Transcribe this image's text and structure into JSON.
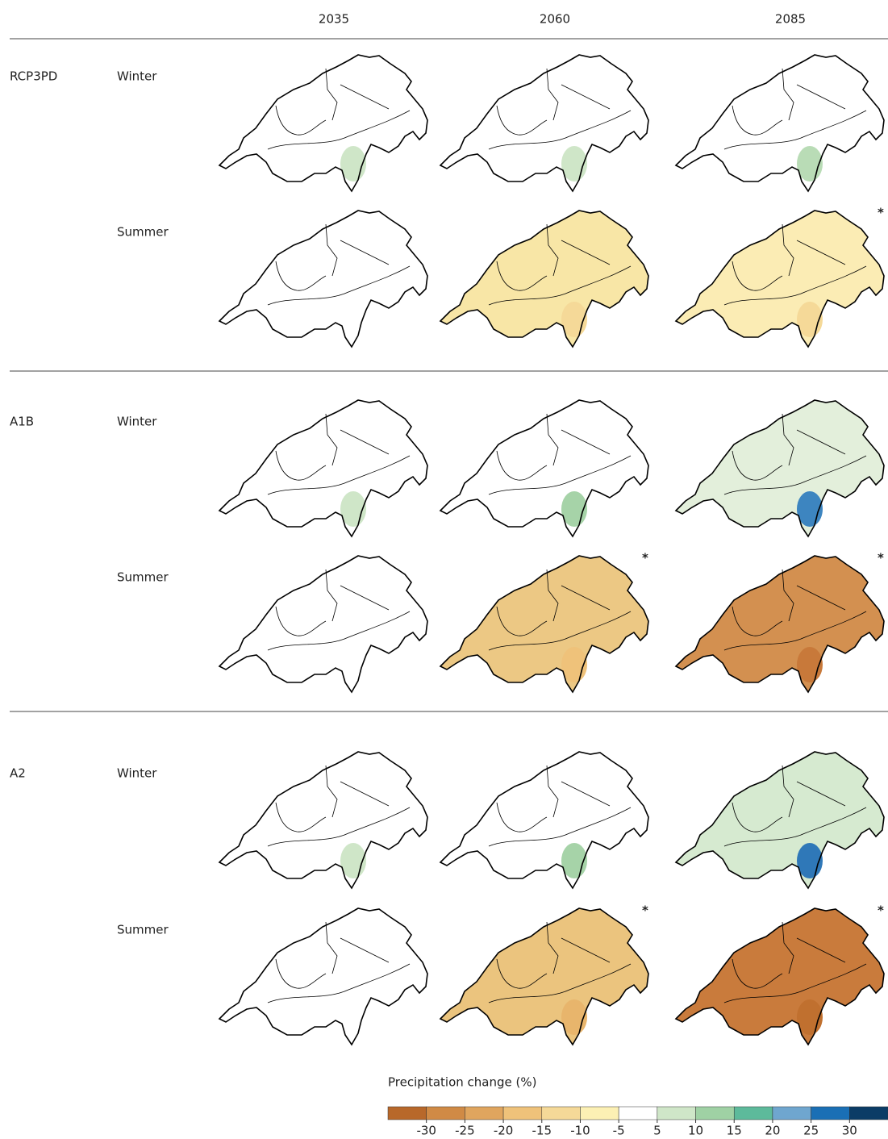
{
  "columns": [
    "2035",
    "2060",
    "2085"
  ],
  "rows": [
    {
      "scenario": "RCP3PD",
      "seasons": [
        {
          "name": "Winter",
          "panels": [
            {
              "fill": "#ffffff",
              "south": "#cfe6c8"
            },
            {
              "fill": "#ffffff",
              "south": "#cfe6c8"
            },
            {
              "fill": "#ffffff",
              "south": "#b9dcb6"
            }
          ]
        },
        {
          "name": "Summer",
          "panels": [
            {
              "fill": "#ffffff",
              "south": "#ffffff"
            },
            {
              "fill": "#f8e6a6",
              "south": "#f5d998"
            },
            {
              "fill": "#fbecb4",
              "south": "#f5d998",
              "marker": "*"
            }
          ]
        }
      ]
    },
    {
      "scenario": "A1B",
      "seasons": [
        {
          "name": "Winter",
          "panels": [
            {
              "fill": "#ffffff",
              "south": "#cfe6c8"
            },
            {
              "fill": "#ffffff",
              "south": "#a6d3a8"
            },
            {
              "fill": "#e3efdb",
              "south": "#3d85c0"
            }
          ]
        },
        {
          "name": "Summer",
          "panels": [
            {
              "fill": "#ffffff",
              "south": "#ffffff"
            },
            {
              "fill": "#ecc884",
              "south": "#efc27a",
              "marker": "*"
            },
            {
              "fill": "#d39050",
              "south": "#c8793a",
              "marker": "*"
            }
          ]
        }
      ]
    },
    {
      "scenario": "A2",
      "seasons": [
        {
          "name": "Winter",
          "panels": [
            {
              "fill": "#ffffff",
              "south": "#cfe6c8"
            },
            {
              "fill": "#ffffff",
              "south": "#a6d3a8"
            },
            {
              "fill": "#d6ead0",
              "south": "#2f78b8"
            }
          ]
        },
        {
          "name": "Summer",
          "panels": [
            {
              "fill": "#ffffff",
              "south": "#ffffff"
            },
            {
              "fill": "#ebc47e",
              "south": "#e8b56c",
              "marker": "*"
            },
            {
              "fill": "#c97b3c",
              "south": "#c0702f",
              "marker": "*"
            }
          ]
        }
      ]
    }
  ],
  "colorbar": {
    "title": "Precipitation change (%)",
    "ticks": [
      -30,
      -25,
      -20,
      -15,
      -10,
      -5,
      5,
      10,
      15,
      20,
      25,
      30
    ],
    "colors": [
      "#b8682a",
      "#d08a45",
      "#e0a55e",
      "#efc27a",
      "#f5d998",
      "#fcf0b4",
      "#ffffff",
      "#cfe6c8",
      "#9fd1a4",
      "#5dba9b",
      "#6fa6cf",
      "#1a6fb5",
      "#0b3c66"
    ]
  }
}
